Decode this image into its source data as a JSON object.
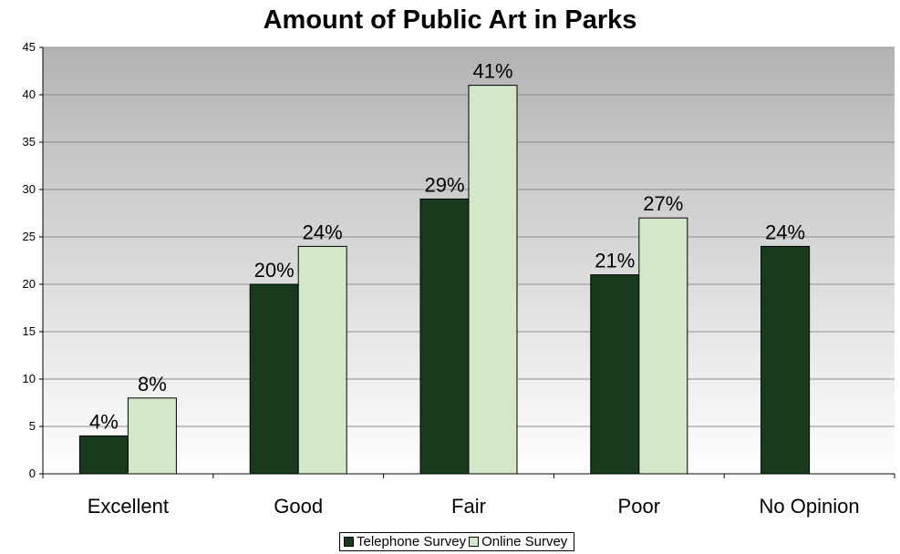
{
  "chart_data": {
    "type": "bar",
    "title": "Amount of Public Art in Parks",
    "xlabel": "",
    "ylabel": "",
    "categories": [
      "Excellent",
      "Good",
      "Fair",
      "Poor",
      "No Opinion"
    ],
    "series": [
      {
        "name": "Telephone Survey",
        "color": "#1a3a1e",
        "values": [
          4,
          20,
          29,
          21,
          24
        ],
        "labels": [
          "4%",
          "20%",
          "29%",
          "21%",
          "24%"
        ]
      },
      {
        "name": "Online Survey",
        "color": "#d3e8c8",
        "values": [
          8,
          24,
          41,
          27,
          null
        ],
        "labels": [
          "8%",
          "24%",
          "41%",
          "27%",
          ""
        ]
      }
    ],
    "ylim": [
      0,
      45
    ],
    "yticks": [
      "0",
      "5",
      "10",
      "15",
      "20",
      "25",
      "30",
      "35",
      "40",
      "45"
    ],
    "grid": true,
    "legend_position": "bottom"
  }
}
